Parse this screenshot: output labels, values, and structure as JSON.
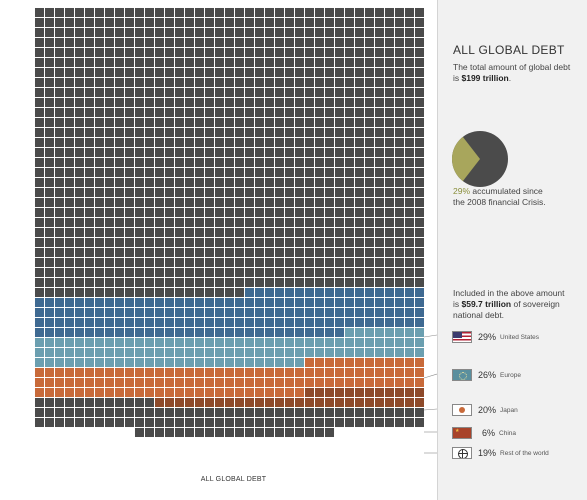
{
  "chart_data": {
    "type": "waffle",
    "xlabel": "ALL GLOBAL DEBT",
    "rows": [
      {
        "color": "#4b4b4b",
        "segments": [
          {
            "cols": 39,
            "color": "#4b4b4b"
          }
        ],
        "count": 28
      },
      {
        "segments": [
          {
            "cols": 21,
            "color": "#4b4b4b"
          },
          {
            "cols": 18,
            "color": "#3f6a92"
          }
        ]
      },
      {
        "segments": [
          {
            "cols": 39,
            "color": "#3f6a92"
          }
        ],
        "count": 3
      },
      {
        "segments": [
          {
            "cols": 31,
            "color": "#3f6a92"
          },
          {
            "cols": 8,
            "color": "#6b9fb0"
          }
        ]
      },
      {
        "segments": [
          {
            "cols": 39,
            "color": "#6b9fb0"
          }
        ],
        "count": 2
      },
      {
        "segments": [
          {
            "cols": 27,
            "color": "#6b9fb0"
          },
          {
            "cols": 12,
            "color": "#c86a3a"
          }
        ]
      },
      {
        "segments": [
          {
            "cols": 39,
            "color": "#c86a3a"
          }
        ],
        "count": 2
      },
      {
        "segments": [
          {
            "cols": 27,
            "color": "#c86a3a"
          },
          {
            "cols": 12,
            "color": "#8e4a2a"
          }
        ]
      },
      {
        "segments": [
          {
            "cols": 12,
            "color": "#4b4b4b"
          },
          {
            "cols": 27,
            "color": "#8e4a2a"
          }
        ]
      },
      {
        "segments": [
          {
            "cols": 39,
            "color": "#4b4b4b"
          }
        ],
        "count": 2
      }
    ],
    "base_row": {
      "cols": 20,
      "color": "#4b4b4b"
    },
    "legend": [
      {
        "pct": "29%",
        "label": "United States",
        "color": "#3f6a92",
        "flag": "us-flag-icon"
      },
      {
        "pct": "26%",
        "label": "Europe",
        "color": "#6b9fb0",
        "flag": "eu-flag-icon"
      },
      {
        "pct": "20%",
        "label": "Japan",
        "color": "#c86a3a",
        "flag": "japan-flag-icon"
      },
      {
        "pct": "6%",
        "label": "China",
        "color": "#8e4a2a",
        "flag": "china-flag-icon"
      },
      {
        "pct": "19%",
        "label": "Rest of the world",
        "color": "#4b4b4b",
        "flag": "globe-icon"
      }
    ]
  },
  "sidebar": {
    "title": "ALL GLOBAL DEBT",
    "total_line1": "The total amount of global debt",
    "total_pre": "is ",
    "total_value": "$199 trillion",
    "total_post": ".",
    "pie": {
      "accumulated_pct": 29,
      "color_main": "#4b4b4b",
      "color_slice": "#a8a65c"
    },
    "pie_pct": "29%",
    "pie_text1": " accumulated since",
    "pie_text2": "the 2008 financial Crisis.",
    "sov_line1": "Included in the above amount",
    "sov_pre": "is ",
    "sov_value": "$59.7 trillion",
    "sov_post": " of sovereign",
    "sov_line3": "national debt."
  }
}
